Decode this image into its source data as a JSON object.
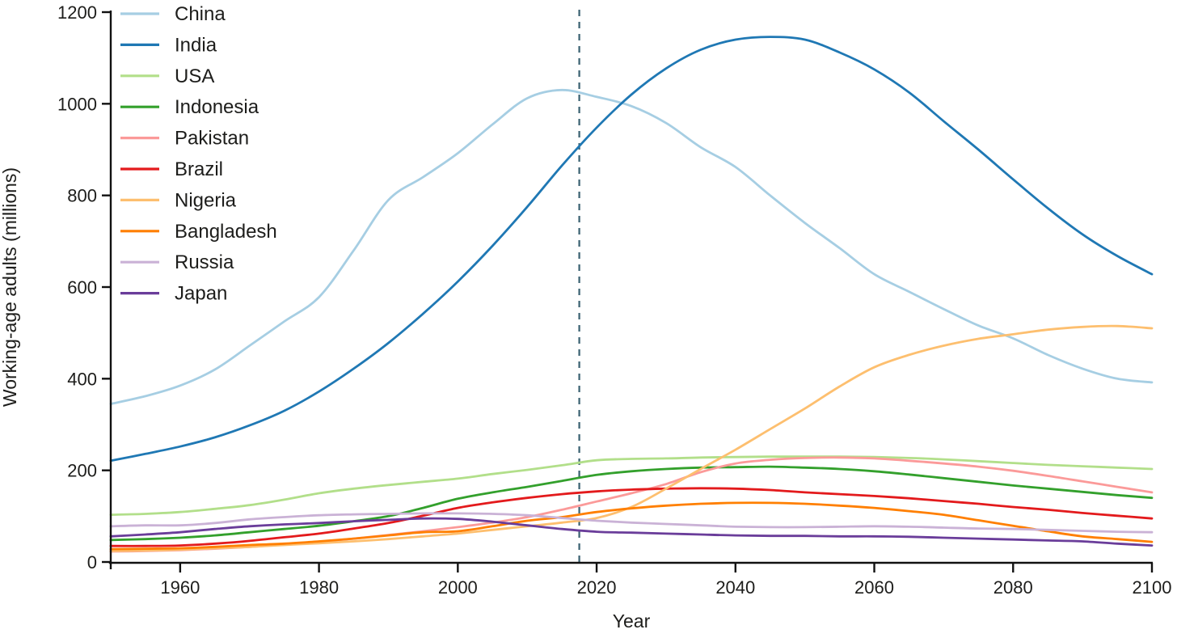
{
  "figure": {
    "y_axis_title": "Working-age adults (millions)",
    "x_axis_title": "Year",
    "colors": {
      "axis": "#111111",
      "text": "#1d1d1b",
      "reference_line": "#3f6575",
      "background": "#ffffff"
    }
  },
  "chart_data": {
    "type": "line",
    "title": "",
    "xlabel": "Year",
    "ylabel": "Working-age adults (millions)",
    "xlim": [
      1950,
      2100
    ],
    "ylim": [
      0,
      1200
    ],
    "grid": false,
    "legend_position": "top-left",
    "x_ticks": [
      1960,
      1980,
      2000,
      2020,
      2040,
      2060,
      2080,
      2100
    ],
    "y_ticks": [
      0,
      200,
      400,
      600,
      800,
      1000,
      1200
    ],
    "annotations": [
      {
        "type": "vline",
        "x": 2017.5,
        "style": "dashed",
        "color": "#3f6575"
      }
    ],
    "x": [
      1950,
      1955,
      1960,
      1965,
      1970,
      1975,
      1980,
      1985,
      1990,
      1995,
      2000,
      2005,
      2010,
      2015,
      2020,
      2025,
      2030,
      2035,
      2040,
      2045,
      2050,
      2055,
      2060,
      2065,
      2070,
      2075,
      2080,
      2085,
      2090,
      2095,
      2100
    ],
    "series": [
      {
        "name": "China",
        "color": "#a6cee3",
        "values": [
          345,
          362,
          385,
          420,
          472,
          525,
          578,
          680,
          790,
          840,
          892,
          955,
          1012,
          1030,
          1015,
          995,
          958,
          905,
          862,
          800,
          740,
          685,
          628,
          590,
          552,
          516,
          488,
          452,
          422,
          400,
          392
        ]
      },
      {
        "name": "India",
        "color": "#1f78b4",
        "values": [
          221,
          236,
          252,
          272,
          298,
          330,
          372,
          422,
          478,
          542,
          612,
          690,
          775,
          865,
          948,
          1020,
          1077,
          1118,
          1140,
          1146,
          1140,
          1112,
          1075,
          1025,
          962,
          900,
          835,
          772,
          715,
          668,
          628
        ]
      },
      {
        "name": "USA",
        "color": "#b2df8a",
        "values": [
          103,
          105,
          109,
          116,
          124,
          136,
          150,
          160,
          168,
          175,
          182,
          192,
          201,
          211,
          222,
          225,
          226,
          228,
          229,
          230,
          230,
          230,
          229,
          227,
          224,
          220,
          216,
          212,
          209,
          206,
          203
        ]
      },
      {
        "name": "Indonesia",
        "color": "#33a02c",
        "values": [
          48,
          50,
          53,
          58,
          65,
          72,
          79,
          89,
          100,
          118,
          138,
          152,
          164,
          177,
          190,
          198,
          203,
          206,
          207,
          208,
          206,
          203,
          198,
          191,
          183,
          175,
          167,
          160,
          153,
          146,
          140
        ]
      },
      {
        "name": "Pakistan",
        "color": "#fb9a99",
        "values": [
          23,
          24,
          26,
          29,
          33,
          38,
          44,
          51,
          59,
          67,
          76,
          86,
          98,
          114,
          132,
          150,
          170,
          196,
          215,
          223,
          227,
          228,
          226,
          221,
          215,
          208,
          199,
          188,
          176,
          164,
          152
        ]
      },
      {
        "name": "Brazil",
        "color": "#e31a1c",
        "values": [
          35,
          35,
          36,
          40,
          46,
          54,
          62,
          73,
          85,
          101,
          118,
          130,
          140,
          148,
          154,
          158,
          160,
          161,
          160,
          157,
          152,
          148,
          144,
          139,
          133,
          127,
          120,
          114,
          107,
          101,
          95
        ]
      },
      {
        "name": "Nigeria",
        "color": "#fdbf6f",
        "values": [
          24,
          25,
          27,
          30,
          33,
          37,
          41,
          45,
          50,
          56,
          62,
          70,
          78,
          86,
          96,
          120,
          160,
          203,
          245,
          290,
          335,
          383,
          425,
          452,
          472,
          487,
          497,
          507,
          513,
          515,
          510
        ]
      },
      {
        "name": "Bangladesh",
        "color": "#ff7f00",
        "values": [
          28,
          29,
          30,
          33,
          37,
          40,
          45,
          51,
          58,
          65,
          67,
          78,
          90,
          98,
          109,
          117,
          123,
          127,
          129,
          129,
          127,
          123,
          118,
          111,
          103,
          91,
          79,
          67,
          56,
          50,
          44
        ]
      },
      {
        "name": "Russia",
        "color": "#cab2d6",
        "values": [
          78,
          80,
          80,
          85,
          93,
          98,
          102,
          104,
          105,
          106,
          106,
          105,
          102,
          96,
          90,
          86,
          83,
          80,
          77,
          76,
          76,
          77,
          78,
          77,
          75,
          73,
          72,
          70,
          68,
          66,
          65
        ]
      },
      {
        "name": "Japan",
        "color": "#6a3d9a",
        "values": [
          56,
          60,
          65,
          72,
          78,
          82,
          85,
          89,
          92,
          95,
          94,
          88,
          80,
          72,
          66,
          64,
          62,
          60,
          58,
          57,
          57,
          56,
          56,
          55,
          53,
          51,
          49,
          47,
          45,
          40,
          36
        ]
      }
    ]
  }
}
